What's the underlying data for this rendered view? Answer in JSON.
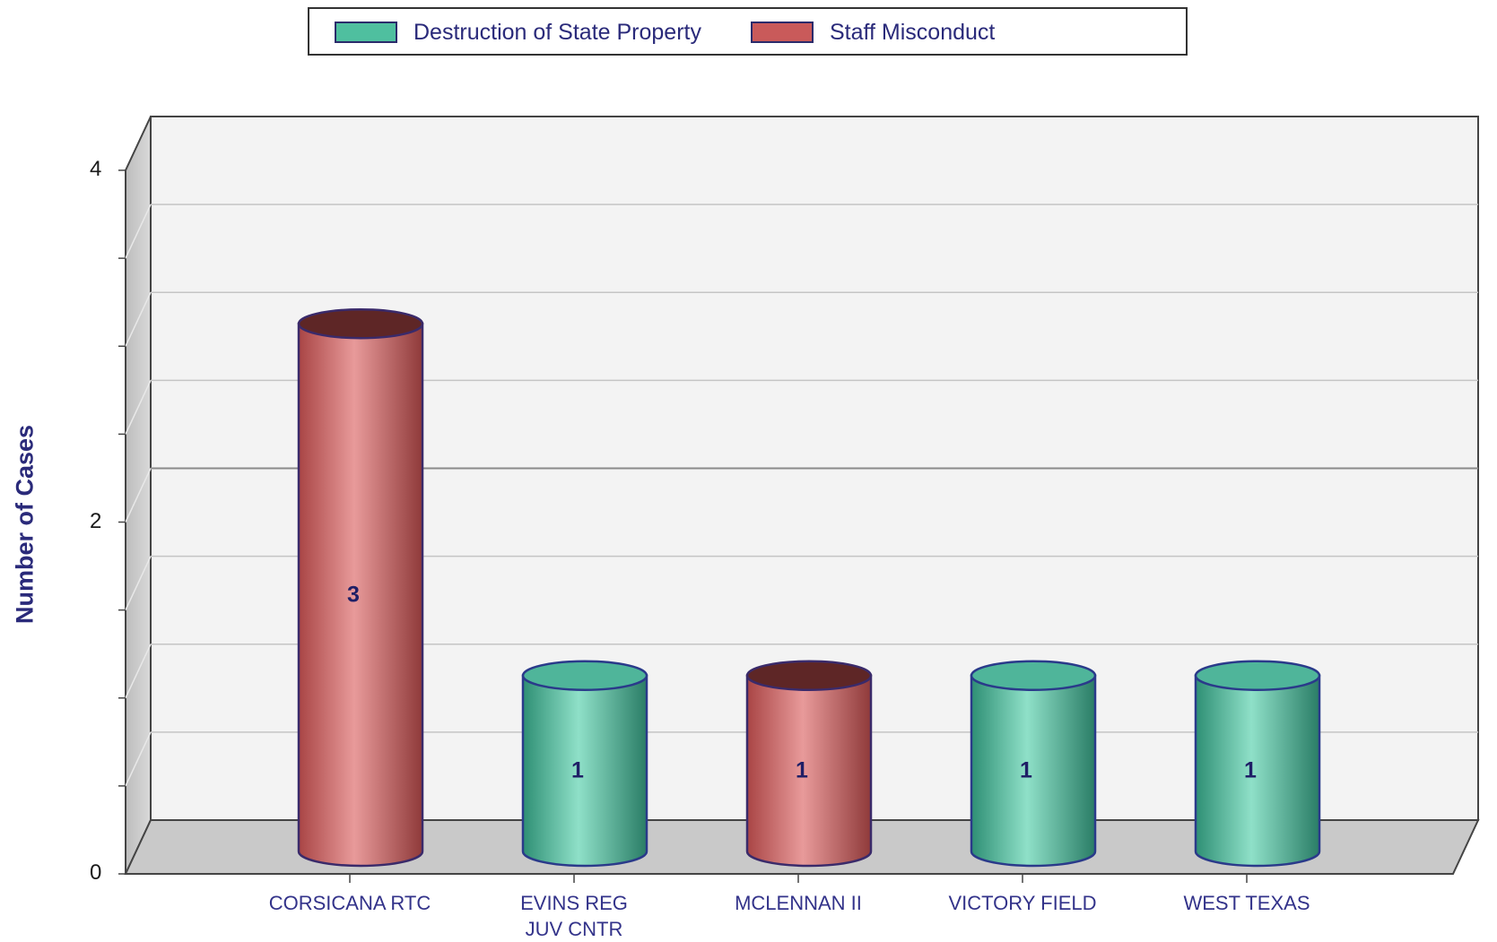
{
  "legend": [
    {
      "label": "Destruction of State Property",
      "color": "#4fbf9f"
    },
    {
      "label": "Staff Misconduct",
      "color": "#c95a5a"
    }
  ],
  "chart_data": {
    "type": "bar",
    "title": "",
    "xlabel": "",
    "ylabel": "Number of Cases",
    "ylim": [
      0,
      4
    ],
    "yticks": [
      "0",
      "2",
      "4"
    ],
    "grid": true,
    "legend_position": "top",
    "categories": [
      "CORSICANA RTC",
      "EVINS REG\nJUV CNTR",
      "MCLENNAN II",
      "VICTORY FIELD",
      "WEST TEXAS"
    ],
    "series": [
      {
        "name": "Destruction of State Property",
        "values": [
          0,
          1,
          0,
          1,
          1
        ]
      },
      {
        "name": "Staff Misconduct",
        "values": [
          3,
          0,
          1,
          0,
          0
        ]
      }
    ],
    "data_labels": [
      "3",
      "1",
      "1",
      "1",
      "1"
    ]
  }
}
